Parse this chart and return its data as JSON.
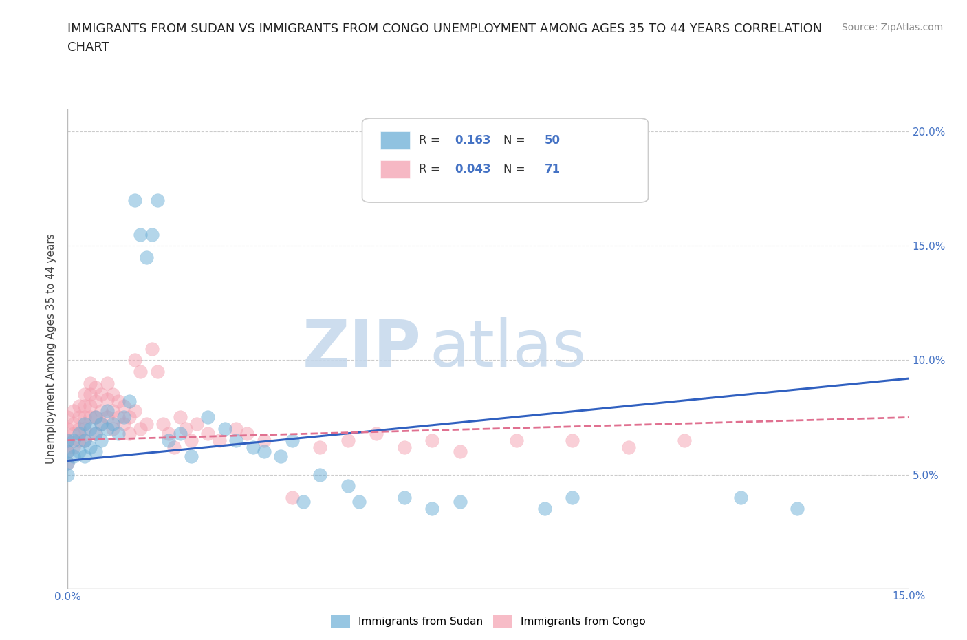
{
  "title_line1": "IMMIGRANTS FROM SUDAN VS IMMIGRANTS FROM CONGO UNEMPLOYMENT AMONG AGES 35 TO 44 YEARS CORRELATION",
  "title_line2": "CHART",
  "source_text": "Source: ZipAtlas.com",
  "ylabel": "Unemployment Among Ages 35 to 44 years",
  "xlim": [
    0.0,
    0.15
  ],
  "ylim": [
    0.0,
    0.21
  ],
  "sudan_color": "#6baed6",
  "congo_color": "#f4a0b0",
  "sudan_trend_color": "#3060c0",
  "congo_trend_color": "#e07090",
  "sudan_R": 0.163,
  "sudan_N": 50,
  "congo_R": 0.043,
  "congo_N": 71,
  "watermark_zip": "ZIP",
  "watermark_atlas": "atlas",
  "background_color": "#ffffff",
  "title_fontsize": 13,
  "grid_color": "#cccccc",
  "legend_color": "#4472c4",
  "sudan_x": [
    0.0,
    0.0,
    0.0,
    0.0,
    0.001,
    0.001,
    0.002,
    0.002,
    0.003,
    0.003,
    0.003,
    0.004,
    0.004,
    0.005,
    0.005,
    0.005,
    0.006,
    0.006,
    0.007,
    0.007,
    0.008,
    0.009,
    0.01,
    0.011,
    0.012,
    0.013,
    0.014,
    0.015,
    0.016,
    0.018,
    0.02,
    0.022,
    0.025,
    0.028,
    0.03,
    0.033,
    0.035,
    0.038,
    0.04,
    0.042,
    0.045,
    0.05,
    0.052,
    0.06,
    0.065,
    0.07,
    0.085,
    0.09,
    0.12,
    0.13
  ],
  "sudan_y": [
    0.065,
    0.06,
    0.055,
    0.05,
    0.065,
    0.058,
    0.068,
    0.06,
    0.072,
    0.065,
    0.058,
    0.07,
    0.062,
    0.075,
    0.068,
    0.06,
    0.072,
    0.065,
    0.078,
    0.07,
    0.072,
    0.068,
    0.075,
    0.082,
    0.17,
    0.155,
    0.145,
    0.155,
    0.17,
    0.065,
    0.068,
    0.058,
    0.075,
    0.07,
    0.065,
    0.062,
    0.06,
    0.058,
    0.065,
    0.038,
    0.05,
    0.045,
    0.038,
    0.04,
    0.035,
    0.038,
    0.035,
    0.04,
    0.04,
    0.035
  ],
  "congo_x": [
    0.0,
    0.0,
    0.0,
    0.0,
    0.0,
    0.001,
    0.001,
    0.001,
    0.001,
    0.002,
    0.002,
    0.002,
    0.002,
    0.003,
    0.003,
    0.003,
    0.003,
    0.003,
    0.004,
    0.004,
    0.004,
    0.004,
    0.005,
    0.005,
    0.005,
    0.005,
    0.006,
    0.006,
    0.006,
    0.007,
    0.007,
    0.007,
    0.008,
    0.008,
    0.008,
    0.009,
    0.009,
    0.01,
    0.01,
    0.011,
    0.011,
    0.012,
    0.012,
    0.013,
    0.013,
    0.014,
    0.015,
    0.016,
    0.017,
    0.018,
    0.019,
    0.02,
    0.021,
    0.022,
    0.023,
    0.025,
    0.027,
    0.03,
    0.032,
    0.035,
    0.04,
    0.045,
    0.05,
    0.055,
    0.06,
    0.065,
    0.07,
    0.08,
    0.09,
    0.1,
    0.11
  ],
  "congo_y": [
    0.075,
    0.07,
    0.065,
    0.06,
    0.055,
    0.078,
    0.072,
    0.068,
    0.062,
    0.08,
    0.075,
    0.07,
    0.065,
    0.085,
    0.08,
    0.075,
    0.07,
    0.065,
    0.09,
    0.085,
    0.08,
    0.075,
    0.088,
    0.082,
    0.075,
    0.068,
    0.085,
    0.078,
    0.072,
    0.09,
    0.083,
    0.075,
    0.085,
    0.078,
    0.07,
    0.082,
    0.075,
    0.08,
    0.072,
    0.075,
    0.068,
    0.1,
    0.078,
    0.095,
    0.07,
    0.072,
    0.105,
    0.095,
    0.072,
    0.068,
    0.062,
    0.075,
    0.07,
    0.065,
    0.072,
    0.068,
    0.065,
    0.07,
    0.068,
    0.065,
    0.04,
    0.062,
    0.065,
    0.068,
    0.062,
    0.065,
    0.06,
    0.065,
    0.065,
    0.062,
    0.065
  ]
}
